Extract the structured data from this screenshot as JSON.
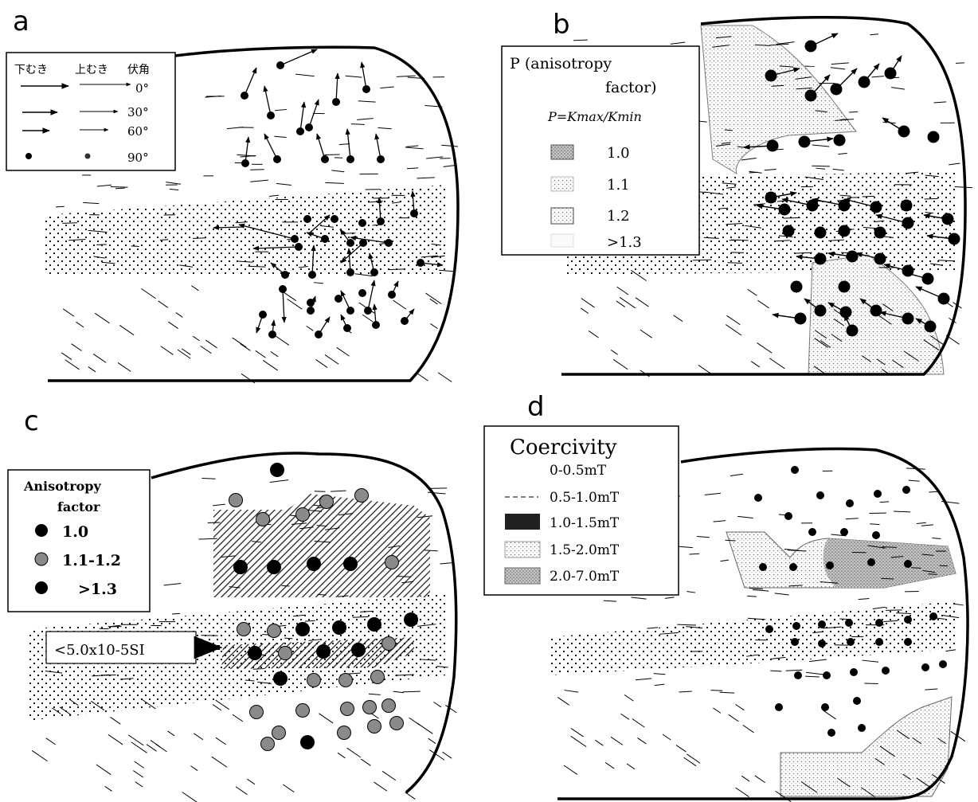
{
  "panel_labels": {
    "a": "a",
    "b": "b",
    "c": "c",
    "d": "d"
  },
  "legend_a": {
    "headers": [
      "下むき",
      "上むき",
      "伏角"
    ],
    "rows": [
      "0°",
      "30°",
      "60°",
      "90°"
    ]
  },
  "legend_b": {
    "title_1": "P (anisotropy",
    "title_2": "factor)",
    "formula": "P=Kmax/Kmin",
    "items": [
      "1.0",
      "1.1",
      "1.2",
      ">1.3"
    ]
  },
  "legend_c": {
    "title_1": "Anisotropy",
    "title_2": "factor",
    "items": [
      "1.0",
      "1.1-1.2",
      ">1.3"
    ]
  },
  "annotation_c": "<5.0x10-5SI",
  "legend_d": {
    "title": "Coercivity",
    "items": [
      "0-0.5mT",
      "0.5-1.0mT",
      "1.0-1.5mT",
      "1.5-2.0mT",
      "2.0-7.0mT"
    ]
  },
  "colors": {
    "outline": "#000000",
    "stipple": "#000000",
    "fine_stipple": "#9a9a9a",
    "dark_fill": "#202020",
    "mid_fill": "#bdbdbd",
    "gray_dot": "#8a8a8a"
  }
}
